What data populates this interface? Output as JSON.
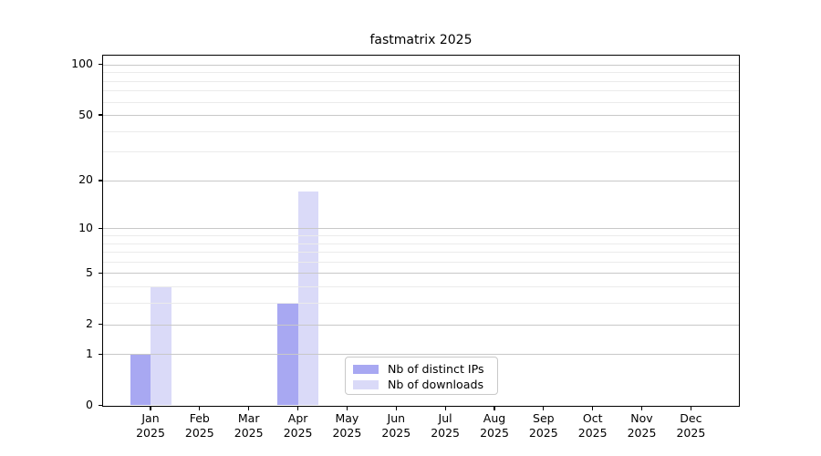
{
  "chart_data": {
    "type": "bar",
    "title": "fastmatrix 2025",
    "x": {
      "months": [
        "Jan",
        "Feb",
        "Mar",
        "Apr",
        "May",
        "Jun",
        "Jul",
        "Aug",
        "Sep",
        "Oct",
        "Nov",
        "Dec"
      ],
      "year": "2025"
    },
    "series": [
      {
        "name": "Nb of distinct IPs",
        "slug": "distinct-ips",
        "color": "#a8a8f2",
        "values": [
          1,
          0,
          0,
          3,
          0,
          0,
          0,
          0,
          0,
          0,
          0,
          0
        ]
      },
      {
        "name": "Nb of downloads",
        "slug": "downloads",
        "color": "#dadaf8",
        "values": [
          4,
          0,
          0,
          17,
          0,
          0,
          0,
          0,
          0,
          0,
          0,
          0
        ]
      }
    ],
    "y_axis": {
      "scale": "log10(1+x)",
      "major_ticks": [
        0,
        1,
        2,
        5,
        10,
        20,
        50,
        100
      ],
      "major_tick_labels": [
        "0",
        "1",
        "2",
        "5",
        "10",
        "20",
        "50",
        "100"
      ],
      "minor_ticks": [
        3,
        4,
        6,
        7,
        8,
        9,
        30,
        40,
        60,
        70,
        80,
        90
      ],
      "ylim": [
        0,
        113
      ]
    },
    "legend": {
      "position": "lower-center"
    },
    "grid": true,
    "colors": {
      "grid_major": "#c8c8c8",
      "grid_minor": "#ebebeb",
      "axis": "#000000",
      "background": "#ffffff",
      "legend_border": "#c9c9c9"
    }
  }
}
